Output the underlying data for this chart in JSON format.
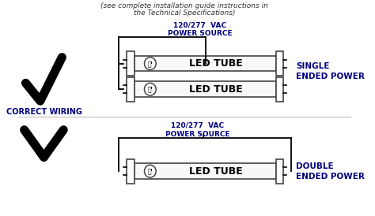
{
  "bg_color": "#ffffff",
  "title_line1": "(see complete installation guide instructions in",
  "title_line2": "the Technical Specifications)",
  "power_label_top": "120/277  VAC\nPOWER SOURCE",
  "power_label_bot": "120/277  VAC\nPOWER SOURCE",
  "led_tube_label": "LED TUBE",
  "correct_wiring_label": "CORRECT WIRING",
  "correct_label_color": "#000080",
  "single_ended_label": "SINGLE\nENDED POWER",
  "double_ended_label": "DOUBLE\nENDED POWER",
  "side_label_color": "#000080",
  "tube_fill": "#f8f8f8",
  "tube_border": "#444444",
  "wire_color": "#000000",
  "text_color": "#000080"
}
